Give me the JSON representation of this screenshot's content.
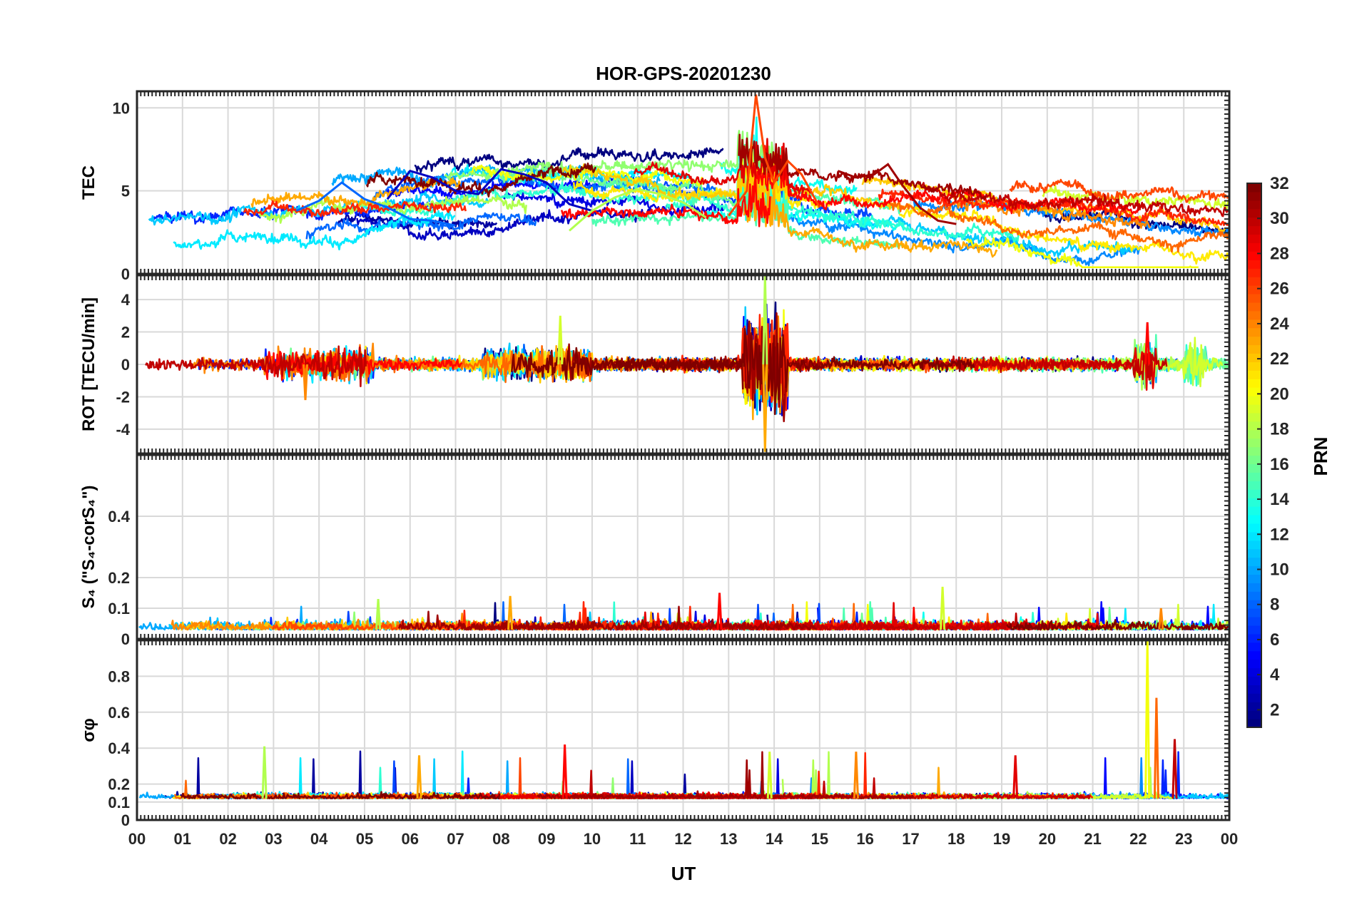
{
  "figure": {
    "title": "HOR-GPS-20201230",
    "xlabel": "UT",
    "x_ticks": [
      "00",
      "01",
      "02",
      "03",
      "04",
      "05",
      "06",
      "07",
      "08",
      "09",
      "10",
      "11",
      "12",
      "13",
      "14",
      "15",
      "16",
      "17",
      "18",
      "19",
      "20",
      "21",
      "22",
      "23",
      "00"
    ],
    "colorbar": {
      "label": "PRN",
      "ticks": [
        "2",
        "4",
        "6",
        "8",
        "10",
        "12",
        "14",
        "16",
        "18",
        "20",
        "22",
        "24",
        "26",
        "28",
        "30",
        "32"
      ],
      "range": [
        1,
        32
      ],
      "colormap": "jet"
    }
  },
  "chart_data": [
    {
      "type": "line",
      "panel": "TEC",
      "ylabel": "TEC",
      "ylim": [
        0,
        11
      ],
      "yticks": [
        "0",
        "5",
        "10"
      ],
      "grid": true,
      "xlim_hours": [
        0,
        24
      ],
      "series_count": 32,
      "series_note_visible": "one line per PRN, colored by PRN",
      "representative_series": [
        {
          "prn": 3,
          "x": [
            5.5,
            6.0,
            6.5,
            7.0,
            7.5,
            8.0,
            8.5,
            9.0,
            9.5,
            10.0
          ],
          "y": [
            4.5,
            6.2,
            5.8,
            5.0,
            4.8,
            6.3,
            6.0,
            5.5,
            4.2,
            3.8
          ]
        },
        {
          "prn": 8,
          "x": [
            3.5,
            4.0,
            4.5,
            5.0,
            5.5,
            6.0,
            6.5,
            7.0
          ],
          "y": [
            3.8,
            4.4,
            5.5,
            4.5,
            4.0,
            3.3,
            3.2,
            2.9
          ]
        },
        {
          "prn": 26,
          "x": [
            13.0,
            13.4,
            13.6,
            13.8,
            14.0,
            14.3,
            14.6,
            15.0
          ],
          "y": [
            3.5,
            5.0,
            10.8,
            7.0,
            5.5,
            6.8,
            6.0,
            4.0
          ]
        },
        {
          "prn": 31,
          "x": [
            15.4,
            15.8,
            16.2,
            16.5,
            16.8,
            17.2,
            17.6,
            18.0
          ],
          "y": [
            6.2,
            5.8,
            6.0,
            6.6,
            5.4,
            4.0,
            3.2,
            3.0
          ]
        },
        {
          "prn": 18,
          "x": [
            9.5,
            10.0,
            10.5,
            11.0,
            11.5,
            12.0,
            12.5
          ],
          "y": [
            2.6,
            3.8,
            4.6,
            5.1,
            4.8,
            4.3,
            3.4
          ]
        }
      ]
    },
    {
      "type": "line",
      "panel": "ROT",
      "ylabel": "ROT [TECU/min]",
      "ylim": [
        -5.5,
        5.5
      ],
      "yticks": [
        "-4",
        "-2",
        "0",
        "2",
        "4"
      ],
      "grid": true,
      "peaks": [
        {
          "x": 13.8,
          "y": 5.5
        },
        {
          "x": 13.8,
          "y": -5.4
        },
        {
          "x": 22.2,
          "y": 2.6
        },
        {
          "x": 9.3,
          "y": 3.0
        },
        {
          "x": 3.7,
          "y": -2.2
        }
      ]
    },
    {
      "type": "line",
      "panel": "S4",
      "ylabel": "S₄ (\"S₄-corS₄\")",
      "ylim": [
        0,
        0.6
      ],
      "yticks": [
        "0",
        "0.1",
        "0.2",
        "0.4"
      ],
      "grid": true,
      "baseline": 0.03,
      "peaks": [
        {
          "x": 5.3,
          "y": 0.13
        },
        {
          "x": 8.2,
          "y": 0.14
        },
        {
          "x": 12.8,
          "y": 0.15
        },
        {
          "x": 17.7,
          "y": 0.17
        },
        {
          "x": 22.5,
          "y": 0.1
        }
      ]
    },
    {
      "type": "line",
      "panel": "sigma_phi",
      "ylabel": "σφ",
      "ylim": [
        0,
        1
      ],
      "yticks": [
        "0",
        "0.1",
        "0.2",
        "0.4",
        "0.6",
        "0.8"
      ],
      "grid": true,
      "baseline": 0.12,
      "peaks": [
        {
          "x": 2.8,
          "y": 0.41
        },
        {
          "x": 6.2,
          "y": 0.36
        },
        {
          "x": 9.4,
          "y": 0.42
        },
        {
          "x": 13.9,
          "y": 0.38
        },
        {
          "x": 15.8,
          "y": 0.38
        },
        {
          "x": 19.3,
          "y": 0.36
        },
        {
          "x": 22.2,
          "y": 1.0
        },
        {
          "x": 22.4,
          "y": 0.68
        },
        {
          "x": 22.8,
          "y": 0.45
        }
      ]
    }
  ]
}
